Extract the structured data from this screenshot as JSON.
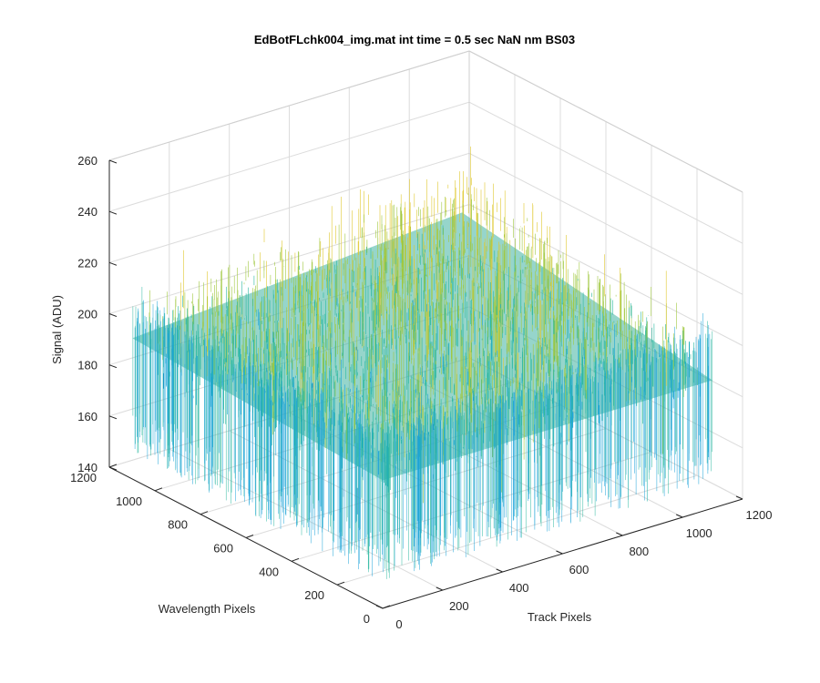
{
  "chart_data": {
    "type": "surface",
    "title": "EdBotFLchk004_img.mat int time = 0.5 sec  NaN nm BS03",
    "xlabel": "Track Pixels",
    "ylabel": "Wavelength Pixels",
    "zlabel": "Signal (ADU)",
    "xlim": [
      0,
      1200
    ],
    "ylim": [
      0,
      1200
    ],
    "zlim": [
      140,
      260
    ],
    "x_ticks": [
      "0",
      "200",
      "400",
      "600",
      "800",
      "1000",
      "1200"
    ],
    "y_ticks": [
      "0",
      "200",
      "400",
      "600",
      "800",
      "1000",
      "1200"
    ],
    "z_ticks": [
      "140",
      "160",
      "180",
      "200",
      "220",
      "240",
      "260"
    ],
    "data_extent": {
      "x": [
        1,
        1100
      ],
      "y": [
        1,
        1100
      ]
    },
    "signal": {
      "baseline": 195,
      "rise_toward_back_corner": 15,
      "noise_std": 8,
      "min_approx": 150,
      "max_approx": 250
    },
    "grid": true,
    "box": "3d-grid",
    "colormap": "parula",
    "colors": [
      "#0072BD",
      "#1AA3D8",
      "#2CB8A0",
      "#A0C840",
      "#E0C830"
    ]
  }
}
